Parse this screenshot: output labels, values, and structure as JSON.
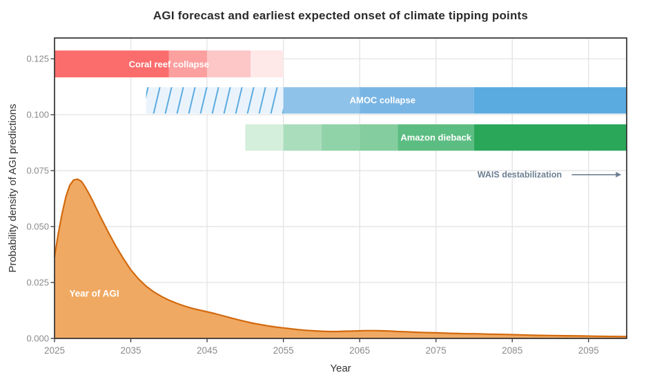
{
  "chart_data": {
    "type": "area",
    "title": "AGI forecast and earliest expected onset of climate tipping points",
    "xlabel": "Year",
    "ylabel": "Probability density of AGI predictions",
    "xlim": [
      2025,
      2100
    ],
    "ylim": [
      0,
      0.1343
    ],
    "grid": "major-only",
    "legend": "none",
    "panel_border_color": "#2f2f2f",
    "gridline_color": "#e3e3e3",
    "tick_color": "#333333",
    "x_ticks": [
      {
        "value": 2025,
        "label": "2025"
      },
      {
        "value": 2035,
        "label": "2035"
      },
      {
        "value": 2045,
        "label": "2045"
      },
      {
        "value": 2055,
        "label": "2055"
      },
      {
        "value": 2065,
        "label": "2065"
      },
      {
        "value": 2075,
        "label": "2075"
      },
      {
        "value": 2085,
        "label": "2085"
      },
      {
        "value": 2095,
        "label": "2095"
      }
    ],
    "y_ticks": [
      {
        "value": 0.0,
        "label": "0.000"
      },
      {
        "value": 0.025,
        "label": "0.025"
      },
      {
        "value": 0.05,
        "label": "0.050"
      },
      {
        "value": 0.075,
        "label": "0.075"
      },
      {
        "value": 0.1,
        "label": "0.100"
      },
      {
        "value": 0.125,
        "label": "0.125"
      }
    ],
    "series": {
      "name": "AGI prediction density",
      "label": "Year of AGI",
      "label_pos": {
        "year": 2030.2,
        "value": 0.02
      },
      "stroke": "#d2690e",
      "fill": "#f0a962",
      "points": [
        [
          2025,
          0.0365
        ],
        [
          2025.5,
          0.047
        ],
        [
          2026,
          0.056
        ],
        [
          2026.5,
          0.0635
        ],
        [
          2027,
          0.0685
        ],
        [
          2027.5,
          0.0708
        ],
        [
          2028,
          0.0712
        ],
        [
          2028.5,
          0.0703
        ],
        [
          2029,
          0.0678
        ],
        [
          2029.5,
          0.0648
        ],
        [
          2030,
          0.0615
        ],
        [
          2031,
          0.0545
        ],
        [
          2032,
          0.0478
        ],
        [
          2033,
          0.0415
        ],
        [
          2034,
          0.0358
        ],
        [
          2035,
          0.0307
        ],
        [
          2036,
          0.0266
        ],
        [
          2037,
          0.0234
        ],
        [
          2038,
          0.0208
        ],
        [
          2039,
          0.0188
        ],
        [
          2040,
          0.0171
        ],
        [
          2041,
          0.0157
        ],
        [
          2042,
          0.0145
        ],
        [
          2043,
          0.0135
        ],
        [
          2044,
          0.0127
        ],
        [
          2045,
          0.0119
        ],
        [
          2046,
          0.0111
        ],
        [
          2047,
          0.0102
        ],
        [
          2048,
          0.0093
        ],
        [
          2049,
          0.0084
        ],
        [
          2050,
          0.0076
        ],
        [
          2051,
          0.0068
        ],
        [
          2052,
          0.0062
        ],
        [
          2053,
          0.0056
        ],
        [
          2054,
          0.0051
        ],
        [
          2055,
          0.0047
        ],
        [
          2056,
          0.0043
        ],
        [
          2057,
          0.0039
        ],
        [
          2058,
          0.0036
        ],
        [
          2059,
          0.0034
        ],
        [
          2060,
          0.0032
        ],
        [
          2061,
          0.0031
        ],
        [
          2062,
          0.0031
        ],
        [
          2063,
          0.0032
        ],
        [
          2064,
          0.0033
        ],
        [
          2065,
          0.0034
        ],
        [
          2066,
          0.0035
        ],
        [
          2067,
          0.0035
        ],
        [
          2068,
          0.0034
        ],
        [
          2069,
          0.0033
        ],
        [
          2070,
          0.0031
        ],
        [
          2071,
          0.003
        ],
        [
          2072,
          0.0028
        ],
        [
          2073,
          0.0027
        ],
        [
          2074,
          0.0026
        ],
        [
          2075,
          0.0025
        ],
        [
          2076,
          0.0024
        ],
        [
          2077,
          0.0023
        ],
        [
          2078,
          0.0022
        ],
        [
          2079,
          0.0021
        ],
        [
          2080,
          0.0021
        ],
        [
          2082,
          0.0019
        ],
        [
          2084,
          0.0018
        ],
        [
          2086,
          0.0016
        ],
        [
          2088,
          0.0014
        ],
        [
          2090,
          0.0013
        ],
        [
          2092,
          0.0012
        ],
        [
          2094,
          0.0011
        ],
        [
          2096,
          0.001
        ],
        [
          2098,
          0.0009
        ],
        [
          2100,
          0.0008
        ]
      ]
    },
    "bars": [
      {
        "name": "coral-reef-collapse",
        "label": "Coral reef collapse",
        "label_pos": {
          "year": 2040,
          "value": 0.1227
        },
        "center": 0.1227,
        "half_height": 0.006,
        "segments": [
          {
            "from": 2025,
            "to": 2040,
            "color": "#fb6c6c"
          },
          {
            "from": 2040,
            "to": 2045,
            "color": "#fc9f9f"
          },
          {
            "from": 2045,
            "to": 2050.7,
            "color": "#fdc7c7"
          },
          {
            "from": 2050.7,
            "to": 2055,
            "color": "#fee8e8"
          }
        ]
      },
      {
        "name": "amoc-collapse",
        "label": "AMOC collapse",
        "label_pos": {
          "year": 2068,
          "value": 0.1064
        },
        "center": 0.1064,
        "half_height": 0.0059,
        "hatch": {
          "from": 2037,
          "to": 2055,
          "background": "#eaf3fb",
          "line_color": "#5aabe0"
        },
        "segments": [
          {
            "from": 2055,
            "to": 2065,
            "color": "#8ec2e9"
          },
          {
            "from": 2065,
            "to": 2080,
            "color": "#79b5e4"
          },
          {
            "from": 2080,
            "to": 2100,
            "color": "#5aabe0"
          }
        ]
      },
      {
        "name": "amazon-dieback",
        "label": "Amazon dieback",
        "label_pos": {
          "year": 2075,
          "value": 0.0898
        },
        "center": 0.0898,
        "half_height": 0.0059,
        "segments": [
          {
            "from": 2050,
            "to": 2055,
            "color": "#d4efdc"
          },
          {
            "from": 2055,
            "to": 2060,
            "color": "#aaddbc"
          },
          {
            "from": 2060,
            "to": 2065,
            "color": "#90d3a8"
          },
          {
            "from": 2065,
            "to": 2070,
            "color": "#84cd9e"
          },
          {
            "from": 2070,
            "to": 2080,
            "color": "#5cbd82"
          },
          {
            "from": 2080,
            "to": 2100,
            "color": "#2ba75a"
          }
        ]
      }
    ],
    "annotation": {
      "label": "WAIS destabilization",
      "color": "#6e8093",
      "value": 0.0732,
      "text_end_year": 2091.5,
      "arrow_start_year": 2092.8,
      "arrow_end_year": 2099.3
    }
  }
}
